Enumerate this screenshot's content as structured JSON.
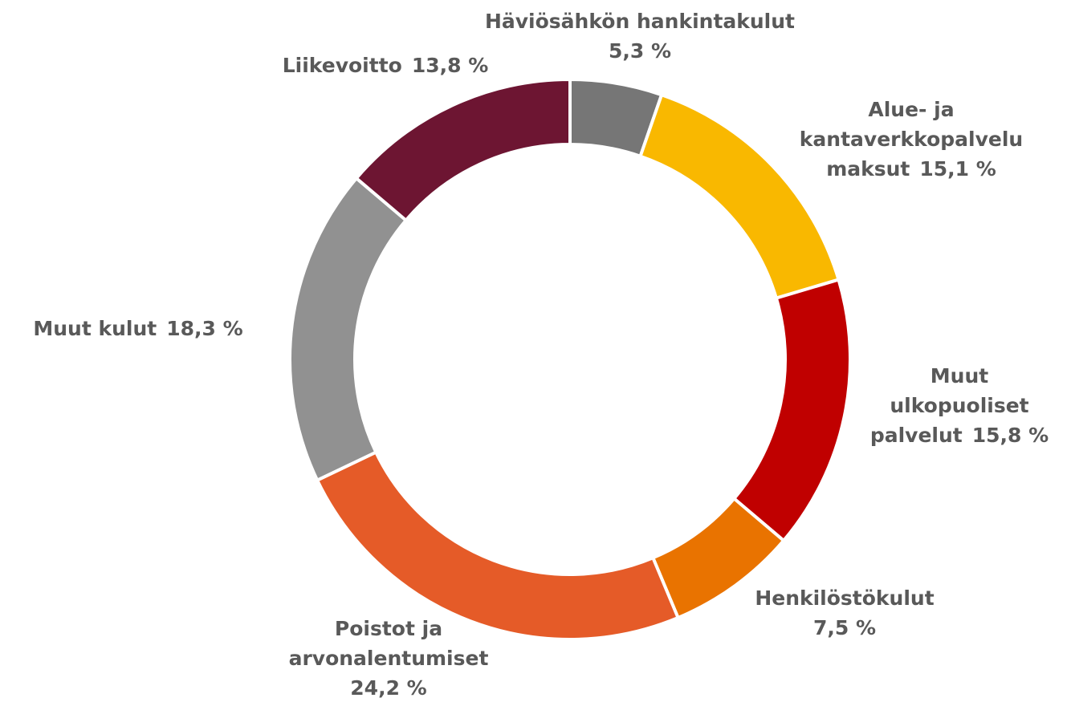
{
  "chart_data": {
    "type": "donut",
    "categories": [
      "Häviösähkön hankintakulut",
      "Alue- ja kantaverkkopalvelu maksut",
      "Muut ulkopuoliset palvelut",
      "Henkilöstökulut",
      "Poistot ja arvonalentumiset",
      "Muut kulut",
      "Liikevoitto"
    ],
    "values": [
      5.3,
      15.1,
      15.8,
      7.5,
      24.2,
      18.3,
      13.8
    ],
    "value_labels": [
      "5,3 %",
      "15,1 %",
      "15,8 %",
      "7,5 %",
      "24,2 %",
      "18,3 %",
      "13,8 %"
    ],
    "colors": [
      "#767676",
      "#f9b800",
      "#c00000",
      "#e97300",
      "#e55b28",
      "#919191",
      "#6d1532"
    ]
  }
}
